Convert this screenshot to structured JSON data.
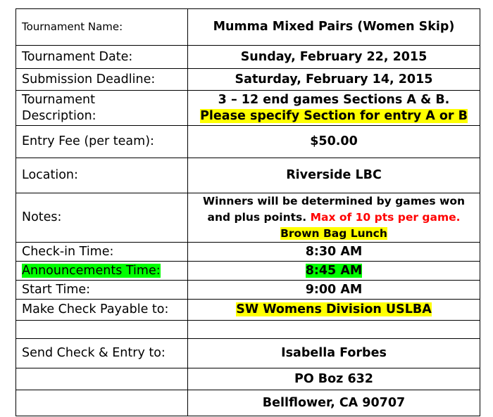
{
  "rows": {
    "name": {
      "label": "Tournament Name:",
      "value": "Mumma Mixed Pairs (Women Skip)"
    },
    "date": {
      "label": "Tournament Date:",
      "value": "Sunday, February 22, 2015"
    },
    "deadline": {
      "label": "Submission Deadline:",
      "value": "Saturday, February 14, 2015"
    },
    "description": {
      "label_line1": "Tournament",
      "label_line2": "Description:",
      "value_line1": "3 – 12 end games Sections A & B.",
      "value_line2": "Please  specify Section for entry A or B"
    },
    "fee": {
      "label": "Entry Fee (per team):",
      "value": "$50.00"
    },
    "location": {
      "label": "Location:",
      "value": "Riverside LBC"
    },
    "notes": {
      "label": "Notes:",
      "line1": "Winners will be determined by games won",
      "line2_black": "and plus points.",
      "line2_red": "Max of 10 pts per game.",
      "line3": "Brown Bag Lunch"
    },
    "checkin": {
      "label": "Check-in Time:",
      "value": "8:30 AM"
    },
    "announcements": {
      "label": "Announcements Time:",
      "value": "8:45 AM"
    },
    "start": {
      "label": "Start Time:",
      "value": "9:00 AM"
    },
    "payable": {
      "label": "Make Check Payable to:",
      "value": "SW Womens Division USLBA"
    },
    "send": {
      "label": "Send Check & Entry to:",
      "name": "Isabella Forbes",
      "address": "PO Boz 632",
      "city": "Bellflower, CA 90707"
    }
  },
  "colors": {
    "yellow_highlight": "#ffff00",
    "green_highlight": "#00ff00",
    "red_text": "#ff0000"
  }
}
